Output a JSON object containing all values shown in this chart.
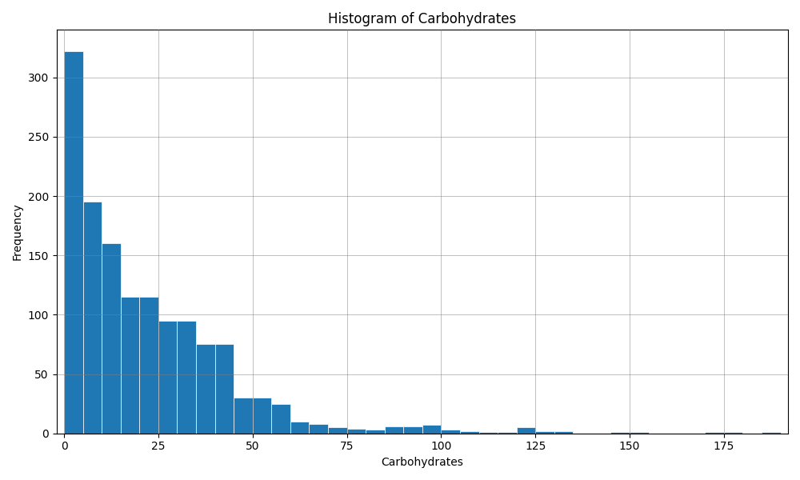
{
  "title": "Histogram of Carbohydrates",
  "xlabel": "Carbohydrates",
  "ylabel": "Frequency",
  "bar_color": "#1f77b4",
  "bar_edgecolor": "white",
  "xlim": [
    -2,
    192
  ],
  "ylim": [
    0,
    340
  ],
  "bin_width": 5,
  "bins_start": 0,
  "bar_heights": [
    322,
    195,
    160,
    115,
    115,
    95,
    95,
    75,
    75,
    30,
    30,
    25,
    10,
    8,
    5,
    4,
    3,
    6,
    6,
    7,
    3,
    2,
    1,
    1,
    5,
    2,
    2,
    0,
    0,
    1,
    1,
    0,
    0,
    0,
    1,
    1,
    0,
    1
  ],
  "xticks": [
    0,
    25,
    50,
    75,
    100,
    125,
    150,
    175
  ],
  "yticks": [
    0,
    50,
    100,
    150,
    200,
    250,
    300
  ],
  "grid": true,
  "figsize": [
    10.0,
    6.0
  ],
  "dpi": 100
}
